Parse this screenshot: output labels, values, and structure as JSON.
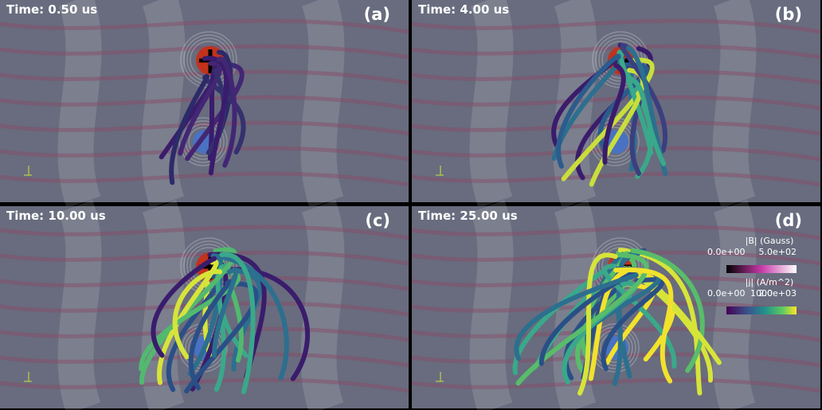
{
  "panels": [
    {
      "time": "Time: 0.50 us",
      "label": "(a)"
    },
    {
      "time": "Time: 4.00 us",
      "label": "(b)"
    },
    {
      "time": "Time: 10.00 us",
      "label": "(c)"
    },
    {
      "time": "Time: 25.00 us",
      "label": "(d)"
    }
  ],
  "colorbars": [
    {
      "title": "|B| (Gauss)",
      "ticks": [
        "0.0e+00",
        "5.0e+02"
      ]
    },
    {
      "title": "|j| (A/m^2)",
      "ticks": [
        "0.0e+00",
        "1000",
        "2.0e+03"
      ]
    }
  ]
}
